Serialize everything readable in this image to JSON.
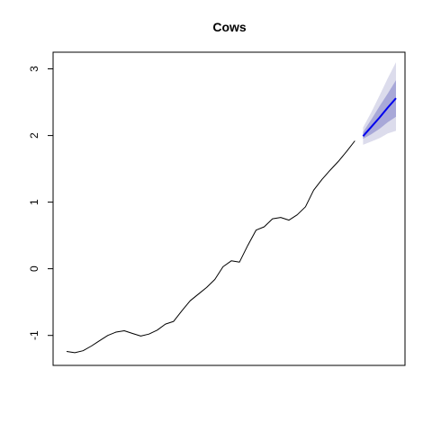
{
  "chart_data": {
    "type": "line",
    "title": "Cows",
    "xlabel": "",
    "ylabel": "",
    "ylim": [
      -1.45,
      3.25
    ],
    "y_ticks": [
      -1,
      0,
      1,
      2,
      3
    ],
    "y_tick_labels": [
      "-1",
      "0",
      "1",
      "2",
      "3"
    ],
    "x_ticks_shown": false,
    "grid": false,
    "legend": "none",
    "series": [
      {
        "values": [
          -1.24,
          -1.26,
          -1.23,
          -1.16,
          -1.08,
          -1.0,
          -0.95,
          -0.93,
          -0.97,
          -1.01,
          -0.98,
          -0.92,
          -0.83,
          -0.79,
          -0.63,
          -0.48,
          -0.38,
          -0.28,
          -0.16,
          0.03,
          0.12,
          0.1,
          0.35,
          0.58,
          0.63,
          0.75,
          0.77,
          0.73,
          0.81,
          0.93,
          1.18,
          1.34,
          1.48,
          1.61,
          1.76,
          1.92
        ],
        "color": "#000000"
      }
    ],
    "forecast": {
      "point": [
        1.99,
        2.13,
        2.27,
        2.42,
        2.56
      ],
      "band_80": {
        "lower": [
          1.95,
          2.02,
          2.1,
          2.2,
          2.28
        ],
        "upper": [
          2.05,
          2.24,
          2.44,
          2.63,
          2.83
        ]
      },
      "band_95": {
        "lower": [
          1.86,
          1.91,
          1.96,
          2.03,
          2.07
        ],
        "upper": [
          2.12,
          2.35,
          2.6,
          2.86,
          3.1
        ]
      },
      "color": "#0000ee",
      "band_80_color": "#a8a8d8",
      "band_95_color": "#dcdcec"
    }
  }
}
